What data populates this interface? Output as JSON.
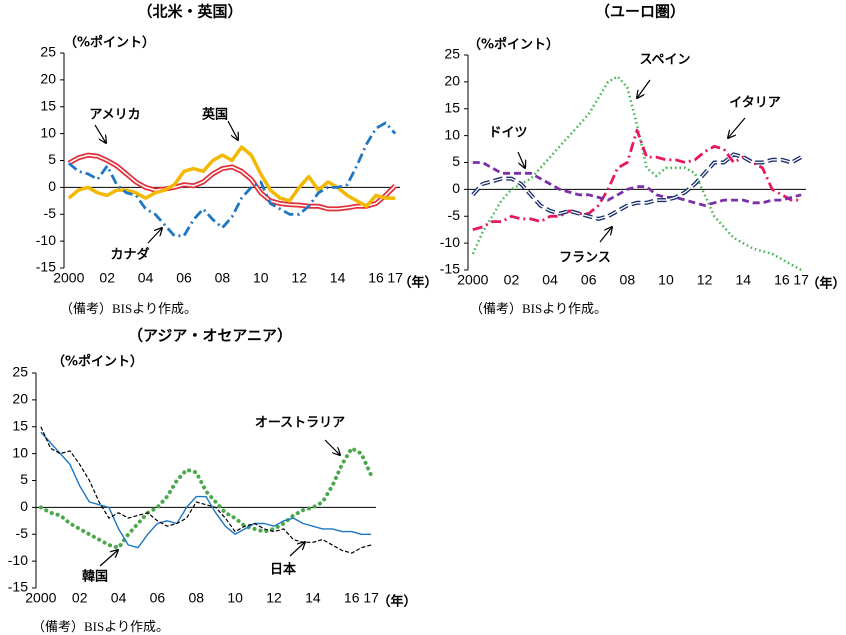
{
  "chart_data": [
    {
      "type": "line",
      "title": "（北米・英国）",
      "ylabel": "（%ポイント）",
      "xlabel": "（年）",
      "note": "（備考）BISより作成。",
      "xlim": [
        1999.75,
        2017.25
      ],
      "ylim": [
        -15,
        25
      ],
      "yticks": [
        -15,
        -10,
        -5,
        0,
        5,
        10,
        15,
        20,
        25
      ],
      "xticks": [
        2000,
        {
          "value": 2002,
          "label": "02"
        },
        {
          "value": 2004,
          "label": "04"
        },
        {
          "value": 2006,
          "label": "06"
        },
        {
          "value": 2008,
          "label": "08"
        },
        {
          "value": 2010,
          "label": "10"
        },
        {
          "value": 2012,
          "label": "12"
        },
        {
          "value": 2014,
          "label": "14"
        },
        {
          "value": 2016,
          "label": "16"
        },
        {
          "value": 2017,
          "label": "17"
        }
      ],
      "x": [
        2000,
        2000.5,
        2001,
        2001.5,
        2002,
        2002.5,
        2003,
        2003.5,
        2004,
        2004.5,
        2005,
        2005.5,
        2006,
        2006.5,
        2007,
        2007.5,
        2008,
        2008.5,
        2009,
        2009.5,
        2010,
        2010.5,
        2011,
        2011.5,
        2012,
        2012.5,
        2013,
        2013.5,
        2014,
        2014.5,
        2015,
        2015.5,
        2016,
        2016.5,
        2017
      ],
      "series": [
        {
          "name": "アメリカ",
          "color": "#e0303a",
          "style": "double",
          "values": [
            4.5,
            5.5,
            6,
            5.8,
            5,
            4,
            2.5,
            1,
            0,
            -0.5,
            -0.3,
            0,
            0.5,
            0.3,
            1,
            2.5,
            3.5,
            3.8,
            3,
            1.5,
            -1,
            -2.5,
            -3,
            -3.2,
            -3.3,
            -3.5,
            -3.5,
            -4,
            -4,
            -3.8,
            -3.5,
            -3.5,
            -3,
            -1.5,
            0.3
          ]
        },
        {
          "name": "英国",
          "color": "#f5b800",
          "style": "thick",
          "values": [
            -2,
            -0.5,
            0,
            -1,
            -1.5,
            -0.5,
            -0.5,
            -1,
            -2,
            -1,
            -0.5,
            0.5,
            3,
            3.5,
            3,
            5,
            6,
            5,
            7.5,
            6,
            2.5,
            -0.5,
            -2,
            -2.5,
            0,
            2,
            -0.5,
            1,
            0,
            -1.5,
            -2.5,
            -3.5,
            -1.5,
            -2,
            -2
          ]
        },
        {
          "name": "カナダ",
          "color": "#1f77c4",
          "style": "dashdot",
          "values": [
            4.5,
            3,
            2.5,
            1.5,
            4,
            0.5,
            -1,
            -1.5,
            -4,
            -5,
            -7,
            -9,
            -9,
            -6,
            -4,
            -6,
            -7.5,
            -5.5,
            -2,
            0,
            1,
            -3,
            -4,
            -5,
            -5,
            -3.5,
            -1,
            0,
            0,
            0.5,
            4,
            8,
            11,
            12,
            10
          ]
        }
      ]
    },
    {
      "type": "line",
      "title": "（ユーロ圏）",
      "ylabel": "（%ポイント）",
      "xlabel": "（年）",
      "note": "（備考）BISより作成。",
      "xlim": [
        1999.75,
        2017.25
      ],
      "ylim": [
        -15,
        25
      ],
      "yticks": [
        -15,
        -10,
        -5,
        0,
        5,
        10,
        15,
        20,
        25
      ],
      "xticks": [
        2000,
        {
          "value": 2002,
          "label": "02"
        },
        {
          "value": 2004,
          "label": "04"
        },
        {
          "value": 2006,
          "label": "06"
        },
        {
          "value": 2008,
          "label": "08"
        },
        {
          "value": 2010,
          "label": "10"
        },
        {
          "value": 2012,
          "label": "12"
        },
        {
          "value": 2014,
          "label": "14"
        },
        {
          "value": 2016,
          "label": "16"
        },
        {
          "value": 2017,
          "label": "17"
        }
      ],
      "x": [
        2000,
        2000.5,
        2001,
        2001.5,
        2002,
        2002.5,
        2003,
        2003.5,
        2004,
        2004.5,
        2005,
        2005.5,
        2006,
        2006.5,
        2007,
        2007.5,
        2008,
        2008.5,
        2009,
        2009.5,
        2010,
        2010.5,
        2011,
        2011.5,
        2012,
        2012.5,
        2013,
        2013.5,
        2014,
        2014.5,
        2015,
        2015.5,
        2016,
        2016.5,
        2017
      ],
      "series": [
        {
          "name": "スペイン",
          "color": "#3cb44b",
          "style": "dotted",
          "values": [
            -12,
            -8,
            -5,
            -2,
            0,
            1,
            2,
            4,
            6,
            8,
            10,
            12,
            14,
            17,
            20,
            21,
            19,
            12,
            4,
            2.5,
            4,
            4,
            4,
            3,
            -1,
            -5,
            -7,
            -9,
            -10,
            -11,
            -11.5,
            -12,
            -13,
            -14,
            -15
          ]
        },
        {
          "name": "イタリア",
          "color": "#e8185e",
          "style": "dashdot",
          "values": [
            -7.5,
            -7,
            -6,
            -6,
            -5,
            -5.5,
            -5.5,
            -6,
            -5,
            -5,
            -4,
            -4.5,
            -4.5,
            -3,
            0,
            4,
            5,
            11,
            6,
            6,
            5.5,
            5.5,
            5,
            5.5,
            7,
            8,
            7.5,
            5,
            6,
            5,
            4,
            0,
            -1,
            -2,
            -2
          ]
        },
        {
          "name": "ドイツ",
          "color": "#7b2fa8",
          "style": "dashed",
          "values": [
            5,
            5,
            4,
            3,
            3,
            3,
            3,
            2,
            1,
            0,
            -0.5,
            -1,
            -1,
            -1.5,
            -2,
            -1,
            0,
            0.5,
            0.5,
            -1,
            -1.5,
            -1.5,
            -2,
            -2.5,
            -3,
            -2.5,
            -2,
            -2,
            -2,
            -2.5,
            -2.5,
            -2,
            -2,
            -1.5,
            -1
          ]
        },
        {
          "name": "フランス",
          "color": "#1b2f6e",
          "style": "doubledash",
          "values": [
            -1,
            1,
            1.5,
            2,
            2,
            1,
            -1,
            -3,
            -4,
            -4.5,
            -4,
            -4.5,
            -5,
            -5.5,
            -5,
            -4,
            -3,
            -2.5,
            -2.5,
            -2,
            -2,
            -1.5,
            -0.5,
            1,
            3,
            5,
            5,
            6.5,
            6,
            5,
            5,
            5.5,
            5.5,
            5,
            6
          ]
        }
      ]
    },
    {
      "type": "line",
      "title": "（アジア・オセアニア）",
      "ylabel": "（%ポイント）",
      "xlabel": "（年）",
      "note": "（備考）BISより作成。",
      "xlim": [
        1999.75,
        2017.25
      ],
      "ylim": [
        -15,
        25
      ],
      "yticks": [
        -15,
        -10,
        -5,
        0,
        5,
        10,
        15,
        20,
        25
      ],
      "xticks": [
        2000,
        {
          "value": 2002,
          "label": "02"
        },
        {
          "value": 2004,
          "label": "04"
        },
        {
          "value": 2006,
          "label": "06"
        },
        {
          "value": 2008,
          "label": "08"
        },
        {
          "value": 2010,
          "label": "10"
        },
        {
          "value": 2012,
          "label": "12"
        },
        {
          "value": 2014,
          "label": "14"
        },
        {
          "value": 2016,
          "label": "16"
        },
        {
          "value": 2017,
          "label": "17"
        }
      ],
      "x": [
        2000,
        2000.5,
        2001,
        2001.5,
        2002,
        2002.5,
        2003,
        2003.5,
        2004,
        2004.5,
        2005,
        2005.5,
        2006,
        2006.5,
        2007,
        2007.5,
        2008,
        2008.5,
        2009,
        2009.5,
        2010,
        2010.5,
        2011,
        2011.5,
        2012,
        2012.5,
        2013,
        2013.5,
        2014,
        2014.5,
        2015,
        2015.5,
        2016,
        2016.5,
        2017
      ],
      "series": [
        {
          "name": "オーストラリア",
          "color": "#4aa84a",
          "style": "bigdot",
          "values": [
            0,
            -1,
            -1.5,
            -3,
            -4,
            -5,
            -6,
            -7,
            -7.5,
            -5,
            -3,
            -1,
            0,
            2,
            5,
            7,
            6.5,
            3,
            1,
            -1,
            -2,
            -3.5,
            -4,
            -4.5,
            -4,
            -3,
            -1.5,
            -0.5,
            0,
            1,
            4,
            8,
            11,
            10,
            6
          ]
        },
        {
          "name": "韓国",
          "color": "#1f77c4",
          "style": "solid",
          "values": [
            14,
            12,
            10,
            8,
            4,
            1,
            0.5,
            0,
            -4,
            -7,
            -7.5,
            -5,
            -3,
            -2.5,
            -3,
            0,
            2,
            2,
            -1,
            -3.5,
            -5,
            -4,
            -3,
            -3,
            -3.5,
            -2.5,
            -2,
            -3,
            -3.5,
            -4,
            -4,
            -4.5,
            -4.5,
            -5,
            -5
          ]
        },
        {
          "name": "日本",
          "color": "#000000",
          "style": "thindash",
          "values": [
            15,
            11,
            10,
            10.5,
            8,
            5,
            1,
            -2,
            -1,
            -2,
            -1.5,
            -1,
            -2.5,
            -3.5,
            -3,
            -2,
            1,
            0.5,
            0,
            -2,
            -4.5,
            -3.5,
            -3,
            -4,
            -4.5,
            -4,
            -6,
            -6.5,
            -6.5,
            -6,
            -7,
            -8,
            -8.5,
            -7.5,
            -7
          ]
        }
      ]
    }
  ]
}
